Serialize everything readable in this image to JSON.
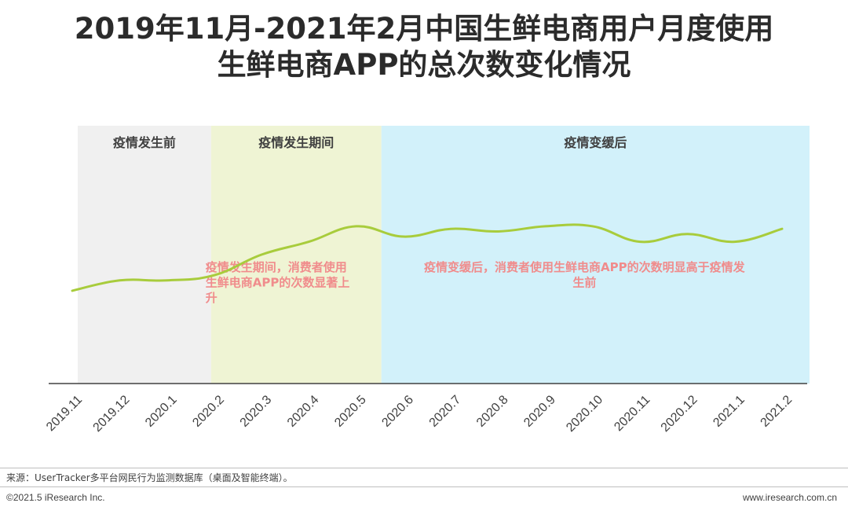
{
  "title_lines": [
    "2019年11月-2021年2月中国生鲜电商用户月度使用",
    "生鲜电商APP的总次数变化情况"
  ],
  "chart_data": {
    "type": "line",
    "title": "2019年11月-2021年2月中国生鲜电商用户月度使用生鲜电商APP的总次数变化情况",
    "categories": [
      "2019.11",
      "2019.12",
      "2020.1",
      "2020.2",
      "2020.3",
      "2020.4",
      "2020.5",
      "2020.6",
      "2020.7",
      "2020.8",
      "2020.9",
      "2020.10",
      "2020.11",
      "2020.12",
      "2021.1",
      "2021.2"
    ],
    "series": [
      {
        "values": [
          36,
          40,
          40,
          42,
          50,
          55,
          61,
          57,
          60,
          59,
          61,
          61,
          55,
          58,
          55,
          60
        ]
      }
    ],
    "ylim": [
      0,
      100
    ],
    "y_axis_visible": false,
    "grid": false,
    "line_color": "#A8CC3C",
    "phases": [
      {
        "label": "疫情发生前",
        "start": "2019.11",
        "end": "2020.2",
        "color": "#F0F0F0"
      },
      {
        "label": "疫情发生期间",
        "start": "2020.2",
        "end": "2020.6",
        "color": "#EFF4D4"
      },
      {
        "label": "疫情变缓后",
        "start": "2020.6",
        "end": "2021.2",
        "color": "#D2F1FA"
      }
    ],
    "annotations": [
      {
        "lines": [
          "疫情发生期间，消费者使用",
          "生鲜电商APP的次数显著上",
          "升"
        ],
        "color": "#F08C8C"
      },
      {
        "lines": [
          "疫情变缓后，消费者使用生鲜电商APP的次数明显高于疫情发",
          "生前"
        ],
        "color": "#F08C8C"
      }
    ]
  },
  "footer": {
    "source": "来源：UserTracker多平台网民行为监测数据库（桌面及智能终端）。",
    "copyright": "©2021.5 iResearch Inc.",
    "website": "www.iresearch.com.cn"
  }
}
